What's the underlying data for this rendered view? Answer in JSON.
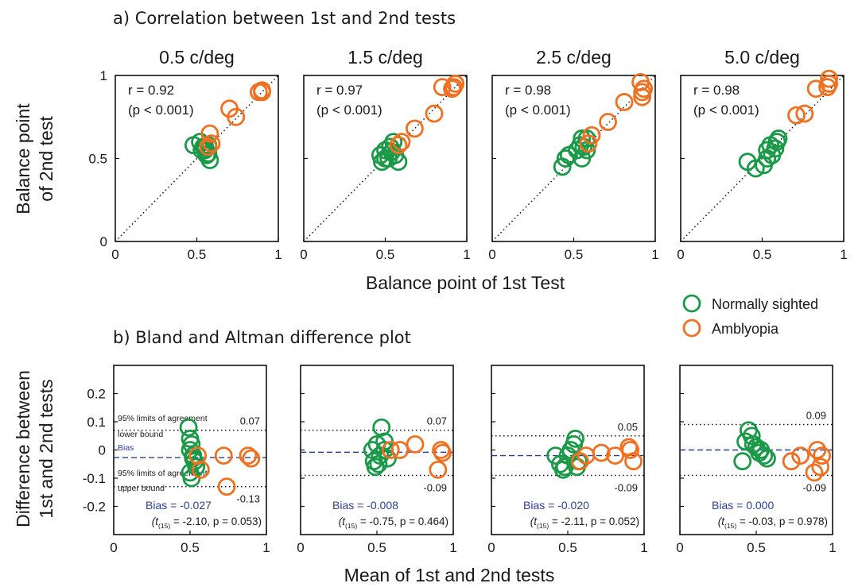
{
  "figure": {
    "section_a_title": "a) Correlation between 1st and 2nd tests",
    "section_b_title": "b) Bland and Altman difference plot",
    "a_xlabel": "Balance point of 1st Test",
    "a_ylabel_line1": "Balance point",
    "a_ylabel_line2": "of 2nd test",
    "b_xlabel": "Mean of 1st and 2nd tests",
    "b_ylabel_line1": "Difference between",
    "b_ylabel_line2": "1st and 2nd tests",
    "legend": [
      {
        "label": "Normally sighted",
        "color": "#1a9a48"
      },
      {
        "label": "Amblyopia",
        "color": "#f07022"
      }
    ],
    "annotations": {
      "upper_limit": "95% limits of agreement",
      "upper_limit_sub": "lower bound",
      "bias": "Bias",
      "lower_limit": "95% limits of agreement",
      "lower_limit_sub": "upper bound"
    },
    "colors": {
      "normal": "#1a9a48",
      "amblyopia": "#f07022",
      "bias": "#2b3f8f"
    }
  },
  "chart_data": [
    {
      "type": "scatter",
      "panel": "a",
      "title": "0.5 c/deg",
      "xlim": [
        0,
        1
      ],
      "ylim": [
        0,
        1
      ],
      "xticks": [
        "0",
        "0.5",
        "1"
      ],
      "yticks": [
        "0",
        "0.5",
        "1"
      ],
      "stat_r": "r = 0.92",
      "stat_p": "(p < 0.001)",
      "series": [
        {
          "name": "Normally sighted",
          "x": [
            0.48,
            0.52,
            0.54,
            0.55,
            0.56,
            0.57,
            0.58,
            0.55,
            0.57,
            0.53
          ],
          "y": [
            0.58,
            0.6,
            0.57,
            0.55,
            0.52,
            0.53,
            0.49,
            0.57,
            0.58,
            0.55
          ]
        },
        {
          "name": "Amblyopia",
          "x": [
            0.57,
            0.59,
            0.58,
            0.7,
            0.74,
            0.88,
            0.9,
            0.9
          ],
          "y": [
            0.57,
            0.59,
            0.65,
            0.8,
            0.75,
            0.9,
            0.91,
            0.9
          ]
        }
      ]
    },
    {
      "type": "scatter",
      "panel": "a",
      "title": "1.5 c/deg",
      "xlim": [
        0,
        1
      ],
      "ylim": [
        0,
        1
      ],
      "xticks": [
        "0",
        "0.5",
        "1"
      ],
      "yticks": [],
      "stat_r": "r = 0.97",
      "stat_p": "(p < 0.001)",
      "series": [
        {
          "name": "Normally sighted",
          "x": [
            0.47,
            0.48,
            0.5,
            0.52,
            0.54,
            0.53,
            0.56,
            0.58,
            0.5,
            0.55
          ],
          "y": [
            0.52,
            0.48,
            0.55,
            0.5,
            0.54,
            0.57,
            0.52,
            0.48,
            0.5,
            0.6
          ]
        },
        {
          "name": "Amblyopia",
          "x": [
            0.58,
            0.6,
            0.68,
            0.8,
            0.85,
            0.92,
            0.93,
            0.91
          ],
          "y": [
            0.58,
            0.6,
            0.68,
            0.77,
            0.93,
            0.93,
            0.95,
            0.92
          ]
        }
      ]
    },
    {
      "type": "scatter",
      "panel": "a",
      "title": "2.5 c/deg",
      "xlim": [
        0,
        1
      ],
      "ylim": [
        0,
        1
      ],
      "xticks": [
        "0",
        "0.5",
        "1"
      ],
      "yticks": [],
      "stat_r": "r = 0.98",
      "stat_p": "(p < 0.001)",
      "series": [
        {
          "name": "Normally sighted",
          "x": [
            0.43,
            0.45,
            0.47,
            0.52,
            0.54,
            0.55,
            0.56,
            0.58,
            0.58,
            0.55
          ],
          "y": [
            0.45,
            0.5,
            0.52,
            0.55,
            0.58,
            0.62,
            0.57,
            0.55,
            0.62,
            0.5
          ]
        },
        {
          "name": "Amblyopia",
          "x": [
            0.59,
            0.61,
            0.71,
            0.81,
            0.91,
            0.93,
            0.92,
            0.92
          ],
          "y": [
            0.59,
            0.64,
            0.72,
            0.84,
            0.96,
            0.92,
            0.9,
            0.87
          ]
        }
      ]
    },
    {
      "type": "scatter",
      "panel": "a",
      "title": "5.0 c/deg",
      "xlim": [
        0,
        1
      ],
      "ylim": [
        0,
        1
      ],
      "xticks": [
        "0",
        "0.5",
        "1"
      ],
      "yticks": [],
      "stat_r": "r = 0.98",
      "stat_p": "(p < 0.001)",
      "series": [
        {
          "name": "Normally sighted",
          "x": [
            0.41,
            0.46,
            0.51,
            0.53,
            0.53,
            0.56,
            0.58,
            0.59,
            0.55,
            0.6
          ],
          "y": [
            0.48,
            0.44,
            0.46,
            0.5,
            0.55,
            0.52,
            0.56,
            0.6,
            0.58,
            0.62
          ]
        },
        {
          "name": "Amblyopia",
          "x": [
            0.71,
            0.76,
            0.83,
            0.9,
            0.91,
            0.91
          ],
          "y": [
            0.76,
            0.77,
            0.92,
            0.93,
            0.98,
            0.95
          ]
        }
      ]
    },
    {
      "type": "scatter",
      "panel": "b",
      "xlim": [
        0,
        1
      ],
      "ylim": [
        -0.3,
        0.3
      ],
      "xticks": [
        "0",
        "0.5",
        "1"
      ],
      "yticks": [
        "-0.2",
        "-0.1",
        "0",
        "0.1",
        "0.2"
      ],
      "upper_loa": 0.07,
      "bias": -0.027,
      "lower_loa": -0.13,
      "upper_label": "0.07",
      "lower_label": "-0.13",
      "bias_text": "Bias = -0.027",
      "t_pre": "(t",
      "t_sub": "(15)",
      "t_post": " = -2.10, p = 0.053)",
      "series": [
        {
          "name": "Normally sighted",
          "x": [
            0.49,
            0.5,
            0.51,
            0.5,
            0.52,
            0.53,
            0.54,
            0.5,
            0.51,
            0.52
          ],
          "y": [
            0.08,
            0.04,
            0.02,
            0.0,
            -0.02,
            -0.04,
            -0.06,
            -0.08,
            -0.1,
            -0.03
          ]
        },
        {
          "name": "Amblyopia",
          "x": [
            0.55,
            0.57,
            0.72,
            0.88,
            0.9,
            0.74
          ],
          "y": [
            -0.02,
            -0.07,
            -0.02,
            -0.02,
            -0.03,
            -0.13
          ]
        }
      ]
    },
    {
      "type": "scatter",
      "panel": "b",
      "xlim": [
        0,
        1
      ],
      "ylim": [
        -0.3,
        0.3
      ],
      "xticks": [
        "0",
        "0.5",
        "1"
      ],
      "yticks": [],
      "upper_loa": 0.07,
      "bias": -0.008,
      "lower_loa": -0.09,
      "upper_label": "0.07",
      "lower_label": "-0.09",
      "bias_text": "Bias = -0.008",
      "t_pre": "(t",
      "t_sub": "(15)",
      "t_post": " = -0.75, p = 0.464)",
      "series": [
        {
          "name": "Normally sighted",
          "x": [
            0.47,
            0.48,
            0.5,
            0.52,
            0.53,
            0.55,
            0.57,
            0.49,
            0.51,
            0.55
          ],
          "y": [
            0.0,
            -0.04,
            0.02,
            -0.02,
            0.08,
            0.03,
            -0.03,
            -0.06,
            -0.05,
            0.0
          ]
        },
        {
          "name": "Amblyopia",
          "x": [
            0.59,
            0.65,
            0.75,
            0.9,
            0.93,
            0.92
          ],
          "y": [
            0.0,
            0.0,
            0.02,
            -0.07,
            -0.01,
            0.0
          ]
        }
      ]
    },
    {
      "type": "scatter",
      "panel": "b",
      "xlim": [
        0,
        1
      ],
      "ylim": [
        -0.3,
        0.3
      ],
      "xticks": [
        "0",
        "0.5",
        "1"
      ],
      "yticks": [],
      "upper_loa": 0.05,
      "bias": -0.02,
      "lower_loa": -0.09,
      "upper_label": "0.05",
      "lower_label": "-0.09",
      "bias_text": "Bias = -0.020",
      "t_pre": "(t",
      "t_sub": "(15)",
      "t_post": " = -2.11, p = 0.052)",
      "series": [
        {
          "name": "Normally sighted",
          "x": [
            0.42,
            0.45,
            0.48,
            0.5,
            0.52,
            0.54,
            0.55,
            0.57,
            0.47,
            0.56
          ],
          "y": [
            -0.02,
            -0.05,
            -0.06,
            -0.02,
            0.0,
            0.02,
            0.04,
            -0.04,
            -0.07,
            -0.06
          ]
        },
        {
          "name": "Amblyopia",
          "x": [
            0.58,
            0.62,
            0.72,
            0.81,
            0.9,
            0.93,
            0.91
          ],
          "y": [
            -0.04,
            -0.02,
            -0.01,
            -0.02,
            0.01,
            -0.04,
            0.0
          ]
        }
      ]
    },
    {
      "type": "scatter",
      "panel": "b",
      "xlim": [
        0,
        1
      ],
      "ylim": [
        -0.3,
        0.3
      ],
      "xticks": [
        "0",
        "0.5",
        "1"
      ],
      "yticks": [],
      "upper_loa": 0.09,
      "bias": 0.0,
      "lower_loa": -0.09,
      "upper_label": "0.09",
      "lower_label": "-0.09",
      "bias_text": "Bias = 0.000",
      "t_pre": "(t",
      "t_sub": "(15)",
      "t_post": " = -0.03, p = 0.978)",
      "series": [
        {
          "name": "Normally sighted",
          "x": [
            0.41,
            0.43,
            0.45,
            0.47,
            0.5,
            0.52,
            0.55,
            0.57,
            0.48,
            0.53
          ],
          "y": [
            -0.04,
            0.03,
            0.07,
            0.05,
            0.01,
            -0.01,
            -0.02,
            -0.03,
            0.02,
            0.0
          ]
        },
        {
          "name": "Amblyopia",
          "x": [
            0.73,
            0.79,
            0.88,
            0.92,
            0.93,
            0.9
          ],
          "y": [
            -0.04,
            -0.02,
            -0.08,
            -0.06,
            -0.02,
            0.0
          ]
        }
      ]
    }
  ]
}
